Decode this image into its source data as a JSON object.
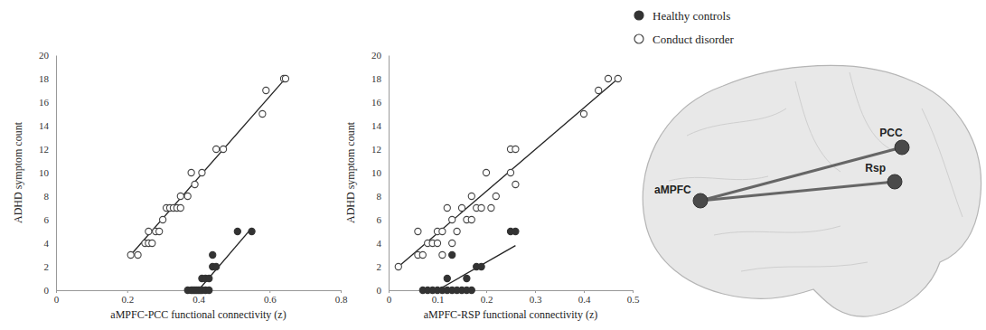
{
  "chart_data": [
    {
      "type": "scatter",
      "x_label": "aMPFC-PCC functional connectivity (z)",
      "y_label": "ADHD symptom count",
      "xlim": [
        0,
        0.8
      ],
      "xticks": [
        0,
        0.2,
        0.4,
        0.6,
        0.8
      ],
      "ylim": [
        0,
        20
      ],
      "yticks": [
        0,
        2,
        4,
        6,
        8,
        10,
        12,
        14,
        16,
        18,
        20
      ],
      "grid": false,
      "series": [
        {
          "name": "Healthy controls",
          "color": "#333333",
          "marker": "circle",
          "x": [
            0.37,
            0.38,
            0.385,
            0.39,
            0.395,
            0.4,
            0.405,
            0.41,
            0.42,
            0.43,
            0.41,
            0.42,
            0.43,
            0.44,
            0.45,
            0.44,
            0.51,
            0.55
          ],
          "values": [
            0,
            0,
            0,
            0,
            0,
            0,
            0,
            0,
            0,
            0,
            1,
            1,
            1,
            2,
            2,
            3,
            5,
            5
          ],
          "fit": {
            "x": [
              0.4,
              0.55
            ],
            "y": [
              0,
              5.3
            ]
          }
        },
        {
          "name": "Conduct disorder",
          "color": "#444444",
          "marker": "open_circle",
          "x": [
            0.21,
            0.23,
            0.25,
            0.26,
            0.26,
            0.27,
            0.28,
            0.29,
            0.3,
            0.31,
            0.32,
            0.33,
            0.34,
            0.35,
            0.35,
            0.37,
            0.38,
            0.39,
            0.41,
            0.45,
            0.47,
            0.58,
            0.59,
            0.64,
            0.645
          ],
          "values": [
            3,
            3,
            4,
            4,
            5,
            4,
            5,
            5,
            6,
            7,
            7,
            7,
            7,
            7,
            8,
            8,
            10,
            9,
            10,
            12,
            12,
            15,
            17,
            18,
            18
          ],
          "fit": {
            "x": [
              0.21,
              0.65
            ],
            "y": [
              3,
              18.2
            ]
          }
        }
      ]
    },
    {
      "type": "scatter",
      "x_label": "aMPFC-RSP functional connectivity (z)",
      "y_label": "ADHD symptom count",
      "xlim": [
        0,
        0.5
      ],
      "xticks": [
        0,
        0.1,
        0.2,
        0.3,
        0.4,
        0.5
      ],
      "ylim": [
        0,
        20
      ],
      "yticks": [
        0,
        2,
        4,
        6,
        8,
        10,
        12,
        14,
        16,
        18,
        20
      ],
      "grid": false,
      "series": [
        {
          "color": "#333333",
          "marker": "circle",
          "x": [
            0.07,
            0.08,
            0.09,
            0.1,
            0.11,
            0.12,
            0.12,
            0.13,
            0.13,
            0.14,
            0.15,
            0.16,
            0.17,
            0.16,
            0.18,
            0.19,
            0.25,
            0.26
          ],
          "values": [
            0,
            0,
            0,
            0,
            0,
            0,
            1,
            0,
            3,
            0,
            0,
            0,
            0,
            1,
            2,
            2,
            5,
            5
          ],
          "fit": {
            "x": [
              0.1,
              0.26
            ],
            "y": [
              0,
              3.8
            ]
          }
        },
        {
          "color": "#444444",
          "marker": "open_circle",
          "x": [
            0.02,
            0.06,
            0.06,
            0.07,
            0.08,
            0.09,
            0.1,
            0.11,
            0.11,
            0.1,
            0.12,
            0.13,
            0.13,
            0.14,
            0.15,
            0.16,
            0.17,
            0.17,
            0.18,
            0.19,
            0.2,
            0.21,
            0.22,
            0.25,
            0.25,
            0.26,
            0.26,
            0.4,
            0.43,
            0.45,
            0.47
          ],
          "values": [
            2,
            3,
            5,
            3,
            4,
            4,
            5,
            5,
            3,
            4,
            7,
            4,
            6,
            5,
            7,
            6,
            6,
            8,
            7,
            7,
            10,
            7,
            8,
            10,
            12,
            12,
            9,
            15,
            17,
            18,
            18
          ],
          "fit": {
            "x": [
              0.02,
              0.47
            ],
            "y": [
              2,
              18
            ]
          }
        }
      ]
    }
  ],
  "diagram": {
    "nodes": [
      {
        "label": "aMPFC"
      },
      {
        "label": "PCC"
      },
      {
        "label": "Rsp"
      }
    ],
    "edges": [
      [
        0,
        1
      ],
      [
        0,
        2
      ]
    ]
  }
}
